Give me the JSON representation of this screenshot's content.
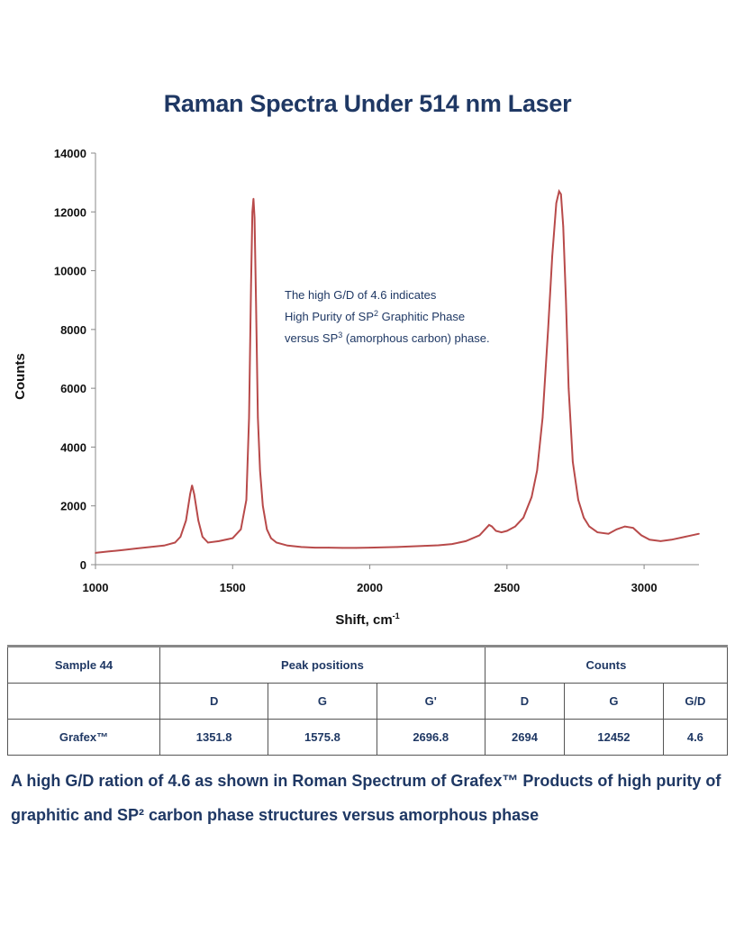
{
  "page": {
    "caption": "A high G/D ration of 4.6 as shown in Roman Spectrum of Grafex™ Products of high purity of graphitic and SP² carbon phase structures versus amorphous phase"
  },
  "colors": {
    "series": "#b84a4a",
    "title": "#1f3864",
    "text": "#1f3864"
  },
  "annotation": {
    "line1": "The high G/D of 4.6 indicates",
    "line2_pre": "High Purity of SP",
    "line2_sup": "2",
    "line2_post": " Graphitic Phase",
    "line3_pre": "versus SP",
    "line3_sup": "3",
    "line3_post": " (amorphous carbon) phase."
  },
  "chart_data": {
    "type": "line",
    "title": "Raman Spectra Under 514 nm Laser",
    "xlabel": "Shift, cm",
    "xlabel_sup": "-1",
    "ylabel": "Counts",
    "xlim": [
      1000,
      3200
    ],
    "ylim": [
      0,
      14000
    ],
    "x_ticks": [
      1000,
      1500,
      2000,
      2500,
      3000
    ],
    "y_ticks": [
      0,
      2000,
      4000,
      6000,
      8000,
      10000,
      12000,
      14000
    ],
    "grid": false,
    "legend": "none",
    "series": [
      {
        "x": [
          1000,
          1050,
          1100,
          1150,
          1200,
          1250,
          1290,
          1310,
          1330,
          1345,
          1352,
          1360,
          1375,
          1390,
          1410,
          1450,
          1500,
          1530,
          1550,
          1560,
          1567,
          1572,
          1576,
          1580,
          1585,
          1592,
          1600,
          1610,
          1625,
          1640,
          1660,
          1700,
          1750,
          1800,
          1850,
          1900,
          1950,
          2000,
          2050,
          2100,
          2150,
          2200,
          2250,
          2300,
          2350,
          2400,
          2420,
          2435,
          2445,
          2460,
          2480,
          2500,
          2530,
          2560,
          2590,
          2610,
          2630,
          2650,
          2665,
          2680,
          2690,
          2697,
          2705,
          2715,
          2725,
          2740,
          2760,
          2780,
          2800,
          2830,
          2870,
          2900,
          2930,
          2960,
          2990,
          3020,
          3060,
          3100,
          3150,
          3200
        ],
        "y": [
          400,
          450,
          500,
          550,
          600,
          650,
          750,
          950,
          1500,
          2400,
          2700,
          2400,
          1500,
          950,
          750,
          800,
          900,
          1200,
          2200,
          5000,
          9500,
          12000,
          12450,
          11800,
          9000,
          5000,
          3200,
          2000,
          1200,
          900,
          750,
          650,
          600,
          580,
          580,
          570,
          570,
          580,
          590,
          600,
          620,
          640,
          660,
          700,
          800,
          1000,
          1200,
          1350,
          1300,
          1150,
          1100,
          1150,
          1300,
          1600,
          2300,
          3200,
          5000,
          8000,
          10500,
          12300,
          12700,
          12600,
          11500,
          9000,
          6000,
          3500,
          2200,
          1600,
          1300,
          1100,
          1050,
          1200,
          1300,
          1250,
          1000,
          850,
          800,
          850,
          950,
          1050
        ]
      }
    ]
  },
  "table": {
    "header": {
      "sample": "Sample 44",
      "peak_positions": "Peak positions",
      "counts": "Counts"
    },
    "subheader": {
      "sample": "",
      "d": "D",
      "g": "G",
      "g_prime": "G'",
      "counts_d": "D",
      "counts_g": "G",
      "gd": "G/D"
    },
    "rows": [
      {
        "sample": "Grafex™",
        "d": "1351.8",
        "g": "1575.8",
        "g_prime": "2696.8",
        "counts_d": "2694",
        "counts_g": "12452",
        "gd": "4.6"
      }
    ]
  }
}
